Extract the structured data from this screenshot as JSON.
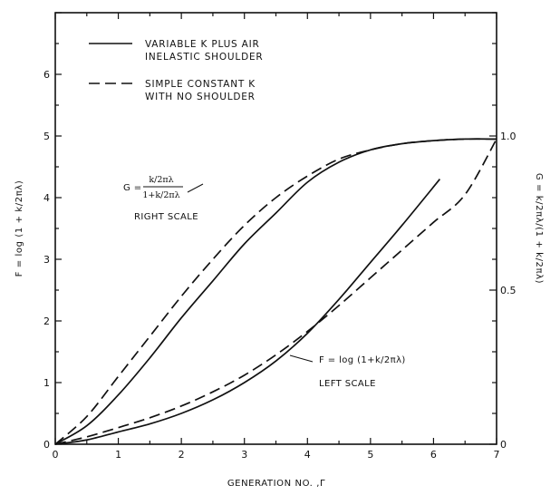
{
  "chart_data": {
    "type": "line",
    "xlabel": "GENERATION NO. ,Γ",
    "ylabel_left": "F = log (1 + k/2πλ)",
    "ylabel_right": "G = k/2πλ/(1 + k/2πλ)",
    "xlim": [
      0,
      7
    ],
    "ylim_left": [
      0,
      7
    ],
    "ylim_right": [
      0,
      1.4
    ],
    "x_ticks": [
      "0",
      "1",
      "2",
      "3",
      "4",
      "5",
      "6",
      "7"
    ],
    "y_ticks_left": [
      "0",
      "1",
      "2",
      "3",
      "4",
      "5",
      "6"
    ],
    "y_ticks_right": [
      "0",
      "0.5",
      "1.0"
    ],
    "grid": false,
    "legend_position": "top-left",
    "legend": [
      {
        "line1": "VARIABLE K PLUS AIR",
        "line2": "INELASTIC SHOULDER",
        "style": "solid"
      },
      {
        "line1": "SIMPLE CONSTANT K",
        "line2": "WITH NO SHOULDER",
        "style": "dashed"
      }
    ],
    "annotations": {
      "g_prefix": "G =",
      "g_numerator": "k/2πλ",
      "g_denominator": "1+k/2πλ",
      "right_scale": "RIGHT SCALE",
      "f_formula": "F = log (1+k/2πλ)",
      "left_scale": "LEFT SCALE"
    },
    "series": [
      {
        "name": "VARIABLE K PLUS AIR INELASTIC SHOULDER (G)",
        "axis": "right",
        "style": "solid",
        "x": [
          0,
          0.5,
          1,
          1.5,
          2,
          2.5,
          3,
          3.5,
          4,
          4.5,
          5,
          5.5,
          6,
          6.5,
          7
        ],
        "y": [
          0,
          0.06,
          0.16,
          0.28,
          0.41,
          0.53,
          0.65,
          0.75,
          0.85,
          0.915,
          0.955,
          0.975,
          0.985,
          0.99,
          0.99
        ]
      },
      {
        "name": "SIMPLE CONSTANT K WITH NO SHOULDER (G)",
        "axis": "right",
        "style": "dashed",
        "x": [
          0,
          0.5,
          1,
          1.5,
          2,
          2.5,
          3,
          3.5,
          4,
          4.5,
          5,
          5.5,
          6,
          6.5,
          7
        ],
        "y": [
          0,
          0.09,
          0.22,
          0.35,
          0.48,
          0.6,
          0.71,
          0.8,
          0.87,
          0.925,
          0.955,
          0.975,
          0.985,
          0.99,
          0.99
        ]
      },
      {
        "name": "VARIABLE K PLUS AIR INELASTIC SHOULDER (F)",
        "axis": "left",
        "style": "solid",
        "x": [
          0,
          0.5,
          1,
          1.5,
          2,
          2.5,
          3,
          3.5,
          4,
          4.5,
          5,
          5.5,
          6.1
        ],
        "y": [
          0,
          0.07,
          0.2,
          0.33,
          0.5,
          0.72,
          1.0,
          1.35,
          1.8,
          2.35,
          2.95,
          3.55,
          4.3
        ]
      },
      {
        "name": "SIMPLE CONSTANT K WITH NO SHOULDER (F)",
        "axis": "left",
        "style": "dashed",
        "x": [
          0,
          0.5,
          1,
          1.5,
          2,
          2.5,
          3,
          3.5,
          4,
          4.5,
          5,
          5.5,
          6,
          6.5,
          7
        ],
        "y": [
          0,
          0.12,
          0.27,
          0.43,
          0.62,
          0.85,
          1.12,
          1.45,
          1.83,
          2.25,
          2.7,
          3.15,
          3.6,
          4.05,
          4.95
        ]
      }
    ]
  }
}
